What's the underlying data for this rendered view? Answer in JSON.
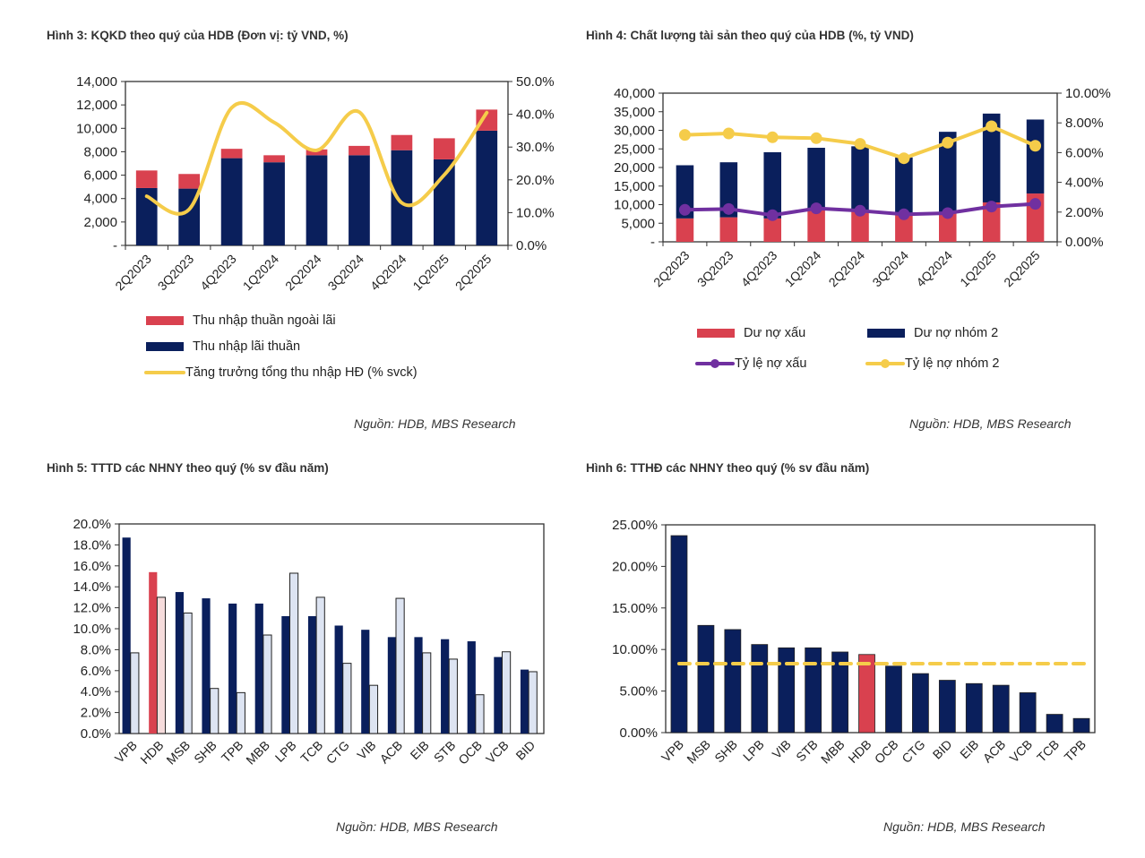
{
  "colors": {
    "navy": "#0a1f5c",
    "red": "#d9414f",
    "yellow": "#f5cc4a",
    "purple": "#7030a0",
    "light_blue": "#dde4f2",
    "pink": "#f6dcdc"
  },
  "chart_data": [
    {
      "id": "fig3",
      "type": "bar",
      "stacked": true,
      "title": "Hình 3: KQKD theo quý của HDB (Đơn vị: tỷ VND, %)",
      "categories": [
        "2Q2023",
        "3Q2023",
        "4Q2023",
        "1Q2024",
        "2Q2024",
        "3Q2024",
        "4Q2024",
        "1Q2025",
        "2Q2025"
      ],
      "series": [
        {
          "name": "Thu nhập lãi thuần",
          "type": "bar",
          "axis": "left",
          "color": "#0a1f5c",
          "values": [
            4900,
            4850,
            7450,
            7100,
            7700,
            7700,
            8130,
            7350,
            9800
          ]
        },
        {
          "name": "Thu nhập thuần ngoài lãi",
          "type": "bar",
          "axis": "left",
          "color": "#d9414f",
          "values": [
            1500,
            1250,
            800,
            600,
            500,
            800,
            1300,
            1800,
            1800
          ]
        },
        {
          "name": "Tăng trưởng tổng thu nhập HĐ (% svck)",
          "type": "line",
          "smooth": true,
          "axis": "right",
          "color": "#f5cc4a",
          "values": [
            15.0,
            11.0,
            42.0,
            37.5,
            29.0,
            40.7,
            13.0,
            21.5,
            40.5
          ]
        }
      ],
      "legend_order": [
        "Thu nhập thuần ngoài lãi",
        "Thu nhập lãi thuần",
        "Tăng trưởng tổng thu nhập HĐ (% svck)"
      ],
      "y_left": {
        "min": 0,
        "max": 14000,
        "ticks": [
          "-",
          "2,000",
          "4,000",
          "6,000",
          "8,000",
          "10,000",
          "12,000",
          "14,000"
        ]
      },
      "y_right": {
        "min": 0,
        "max": 50,
        "ticks": [
          "0.0%",
          "10.0%",
          "20.0%",
          "30.0%",
          "40.0%",
          "50.0%"
        ]
      },
      "legend_position": "bottom",
      "grid": false,
      "source": "Nguồn: HDB, MBS Research"
    },
    {
      "id": "fig4",
      "type": "bar",
      "stacked": true,
      "title": "Hình 4: Chất lượng tài sản theo quý của HDB (%, tỷ VND)",
      "categories": [
        "2Q2023",
        "3Q2023",
        "4Q2023",
        "1Q2024",
        "2Q2024",
        "3Q2024",
        "4Q2024",
        "1Q2025",
        "2Q2025"
      ],
      "series": [
        {
          "name": "Dư nợ xấu",
          "type": "bar",
          "axis": "left",
          "color": "#d9414f",
          "values": [
            6300,
            6600,
            6300,
            8800,
            8400,
            7500,
            7800,
            10600,
            13000
          ]
        },
        {
          "name": "Dư nợ nhóm 2",
          "type": "bar",
          "axis": "left",
          "color": "#0a1f5c",
          "values": [
            14300,
            14800,
            17800,
            16500,
            17300,
            15200,
            21800,
            23900,
            19900
          ]
        },
        {
          "name": "Tỷ lệ nợ xấu",
          "type": "line",
          "markers": true,
          "axis": "right",
          "color": "#7030a0",
          "values": [
            2.15,
            2.21,
            1.79,
            2.25,
            2.09,
            1.85,
            1.93,
            2.37,
            2.55
          ]
        },
        {
          "name": "Tỷ lệ nợ nhóm 2",
          "type": "line",
          "markers": true,
          "axis": "right",
          "color": "#f5cc4a",
          "values": [
            7.19,
            7.29,
            7.03,
            6.97,
            6.59,
            5.62,
            6.67,
            7.77,
            6.46
          ]
        }
      ],
      "y_left": {
        "min": 0,
        "max": 40000,
        "ticks": [
          "-",
          "5,000",
          "10,000",
          "15,000",
          "20,000",
          "25,000",
          "30,000",
          "35,000",
          "40,000"
        ]
      },
      "y_right": {
        "min": 0,
        "max": 10,
        "ticks": [
          "0.00%",
          "2.00%",
          "4.00%",
          "6.00%",
          "8.00%",
          "10.00%"
        ]
      },
      "legend_position": "bottom",
      "grid": false,
      "source": "Nguồn: HDB, MBS Research"
    },
    {
      "id": "fig5",
      "type": "bar",
      "title": "Hình 5: TTTD các NHNY theo quý (% sv đầu năm)",
      "categories": [
        "VPB",
        "HDB",
        "MSB",
        "SHB",
        "TPB",
        "MBB",
        "LPB",
        "TCB",
        "CTG",
        "VIB",
        "ACB",
        "EIB",
        "STB",
        "OCB",
        "VCB",
        "BID"
      ],
      "highlight": "HDB",
      "series": [
        {
          "name": "series_1",
          "color": "#0a1f5c",
          "highlight_color": "#d9414f",
          "values": [
            18.7,
            15.4,
            13.5,
            12.9,
            12.4,
            12.4,
            11.2,
            11.2,
            10.3,
            9.9,
            9.2,
            9.2,
            9.0,
            8.8,
            7.3,
            6.1
          ]
        },
        {
          "name": "series_2",
          "color": "#dde4f2",
          "highlight_color": "#f6dcdc",
          "values": [
            7.7,
            13.0,
            11.5,
            4.3,
            3.9,
            9.4,
            15.3,
            13.0,
            6.7,
            4.6,
            12.9,
            7.7,
            7.1,
            3.7,
            7.8,
            5.9
          ]
        }
      ],
      "y": {
        "min": 0,
        "max": 20,
        "ticks": [
          "0.0%",
          "2.0%",
          "4.0%",
          "6.0%",
          "8.0%",
          "10.0%",
          "12.0%",
          "14.0%",
          "16.0%",
          "18.0%",
          "20.0%"
        ]
      },
      "legend_position": "none",
      "grid": false,
      "source": "Nguồn: HDB, MBS Research"
    },
    {
      "id": "fig6",
      "type": "bar",
      "title": "Hình 6: TTHĐ các NHNY theo quý (% sv đầu năm)",
      "categories": [
        "VPB",
        "MSB",
        "SHB",
        "LPB",
        "VIB",
        "STB",
        "MBB",
        "HDB",
        "OCB",
        "CTG",
        "BID",
        "EIB",
        "ACB",
        "VCB",
        "TCB",
        "TPB"
      ],
      "highlight": "HDB",
      "series": [
        {
          "name": "series_1",
          "color": "#0a1f5c",
          "highlight_color": "#d9414f",
          "values": [
            23.7,
            12.9,
            12.4,
            10.6,
            10.2,
            10.2,
            9.7,
            9.4,
            8.0,
            7.1,
            6.3,
            5.9,
            5.7,
            4.8,
            2.2,
            1.7
          ]
        }
      ],
      "reference_line": {
        "value": 8.3,
        "style": "dashed",
        "color": "#f5cc4a"
      },
      "y": {
        "min": 0,
        "max": 25,
        "ticks": [
          "0.00%",
          "5.00%",
          "10.00%",
          "15.00%",
          "20.00%",
          "25.00%"
        ]
      },
      "legend_position": "none",
      "grid": false,
      "source": "Nguồn: HDB, MBS Research"
    }
  ]
}
